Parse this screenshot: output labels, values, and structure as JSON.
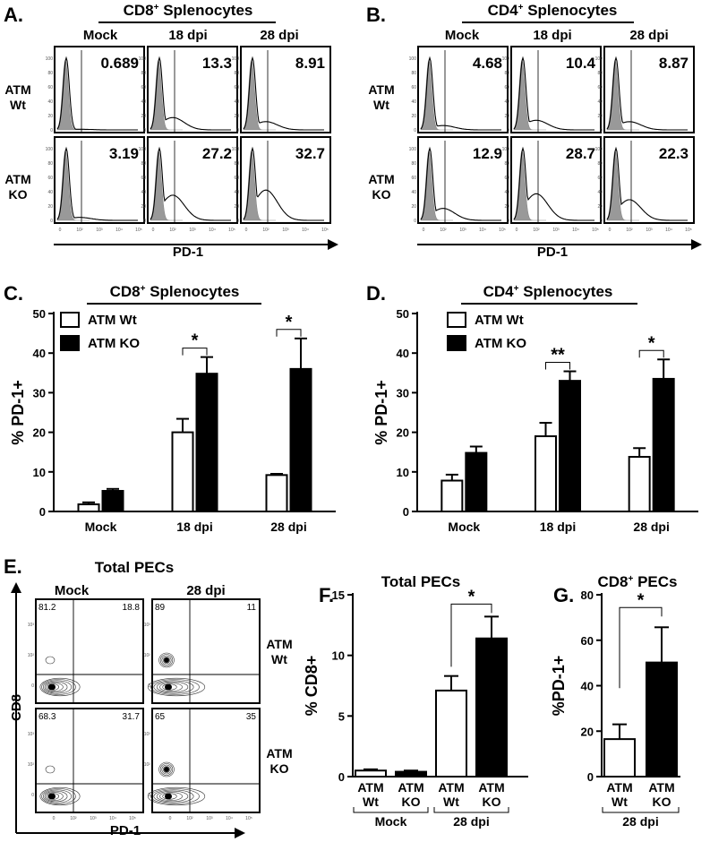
{
  "panels": {
    "A": {
      "letter": "A.",
      "title": "CD8+ Splenocytes",
      "columns": [
        "Mock",
        "18 dpi",
        "28 dpi"
      ],
      "rows": [
        [
          "ATM",
          "Wt"
        ],
        [
          "ATM",
          "KO"
        ]
      ],
      "values": [
        [
          "0.689",
          "13.3",
          "8.91"
        ],
        [
          "3.19",
          "27.2",
          "32.7"
        ]
      ],
      "xaxis": "PD-1"
    },
    "B": {
      "letter": "B.",
      "title": "CD4+ Splenocytes",
      "columns": [
        "Mock",
        "18 dpi",
        "28 dpi"
      ],
      "rows": [
        [
          "ATM",
          "Wt"
        ],
        [
          "ATM",
          "KO"
        ]
      ],
      "values": [
        [
          "4.68",
          "10.4",
          "8.87"
        ],
        [
          "12.9",
          "28.7",
          "22.3"
        ]
      ],
      "xaxis": "PD-1"
    },
    "C": {
      "letter": "C.",
      "title": "CD8+ Splenocytes"
    },
    "D": {
      "letter": "D.",
      "title": "CD4+ Splenocytes"
    },
    "E": {
      "letter": "E.",
      "title": "Total PECs",
      "columns": [
        "Mock",
        "28 dpi"
      ],
      "rows": [
        [
          "ATM",
          "Wt"
        ],
        [
          "ATM",
          "KO"
        ]
      ],
      "quadrants": [
        [
          [
            "81.2",
            "18.8"
          ],
          [
            "89",
            "11"
          ]
        ],
        [
          [
            "68.3",
            "31.7"
          ],
          [
            "65",
            "35"
          ]
        ]
      ],
      "xaxis": "PD-1",
      "yaxis": "CD8"
    },
    "F": {
      "letter": "F.",
      "title": "Total PECs"
    },
    "G": {
      "letter": "G.",
      "title": "CD8+ PECs"
    }
  },
  "chart_data": [
    {
      "panel": "C",
      "type": "bar",
      "title": "CD8+ Splenocytes",
      "ylabel": "% PD-1+",
      "ylim": [
        0,
        50
      ],
      "yticks": [
        0,
        10,
        20,
        30,
        40,
        50
      ],
      "categories": [
        "Mock",
        "18 dpi",
        "28 dpi"
      ],
      "series": [
        {
          "name": "ATM Wt",
          "values": [
            1.8,
            20,
            9.2
          ],
          "errors": [
            0.5,
            3.4,
            0.3
          ],
          "color": "#ffffff"
        },
        {
          "name": "ATM KO",
          "values": [
            5.2,
            34.8,
            36
          ],
          "errors": [
            0.5,
            4.2,
            7.7
          ],
          "color": "#000000"
        }
      ],
      "significance": [
        {
          "category": "18 dpi",
          "label": "*"
        },
        {
          "category": "28 dpi",
          "label": "*"
        }
      ],
      "legend": "top-left"
    },
    {
      "panel": "D",
      "type": "bar",
      "title": "CD4+ Splenocytes",
      "ylabel": "% PD-1+",
      "ylim": [
        0,
        50
      ],
      "yticks": [
        0,
        10,
        20,
        30,
        40,
        50
      ],
      "categories": [
        "Mock",
        "18 dpi",
        "28 dpi"
      ],
      "series": [
        {
          "name": "ATM Wt",
          "values": [
            7.8,
            19,
            13.8
          ],
          "errors": [
            1.5,
            3.4,
            2.2
          ],
          "color": "#ffffff"
        },
        {
          "name": "ATM KO",
          "values": [
            14.8,
            33,
            33.5
          ],
          "errors": [
            1.6,
            2.4,
            4.9
          ],
          "color": "#000000"
        }
      ],
      "significance": [
        {
          "category": "18 dpi",
          "label": "**"
        },
        {
          "category": "28 dpi",
          "label": "*"
        }
      ],
      "legend": "top-left"
    },
    {
      "panel": "F",
      "type": "bar",
      "title": "Total PECs",
      "ylabel": "% CD8+",
      "ylim": [
        0,
        15
      ],
      "yticks": [
        0,
        5,
        10,
        15
      ],
      "bars": [
        {
          "label": [
            "ATM",
            "Wt"
          ],
          "value": 0.5,
          "error": 0.1,
          "color": "#ffffff"
        },
        {
          "label": [
            "ATM",
            "KO"
          ],
          "value": 0.4,
          "error": 0.1,
          "color": "#000000"
        },
        {
          "label": [
            "ATM",
            "Wt"
          ],
          "value": 7.1,
          "error": 1.2,
          "color": "#ffffff"
        },
        {
          "label": [
            "ATM",
            "KO"
          ],
          "value": 11.4,
          "error": 1.8,
          "color": "#000000"
        }
      ],
      "groups": [
        {
          "label": "Mock",
          "bars": [
            0,
            1
          ]
        },
        {
          "label": "28 dpi",
          "bars": [
            2,
            3
          ]
        }
      ],
      "significance": [
        {
          "bars": [
            2,
            3
          ],
          "label": "*"
        }
      ]
    },
    {
      "panel": "G",
      "type": "bar",
      "title": "CD8+ PECs",
      "ylabel": "%PD-1+",
      "ylim": [
        0,
        80
      ],
      "yticks": [
        0,
        20,
        40,
        60,
        80
      ],
      "bars": [
        {
          "label": [
            "ATM",
            "Wt"
          ],
          "value": 16.5,
          "error": 6.5,
          "color": "#ffffff"
        },
        {
          "label": [
            "ATM",
            "KO"
          ],
          "value": 50.2,
          "error": 15.5,
          "color": "#000000"
        }
      ],
      "groups": [
        {
          "label": "28 dpi",
          "bars": [
            0,
            1
          ]
        }
      ],
      "significance": [
        {
          "bars": [
            0,
            1
          ],
          "label": "*"
        }
      ]
    }
  ]
}
